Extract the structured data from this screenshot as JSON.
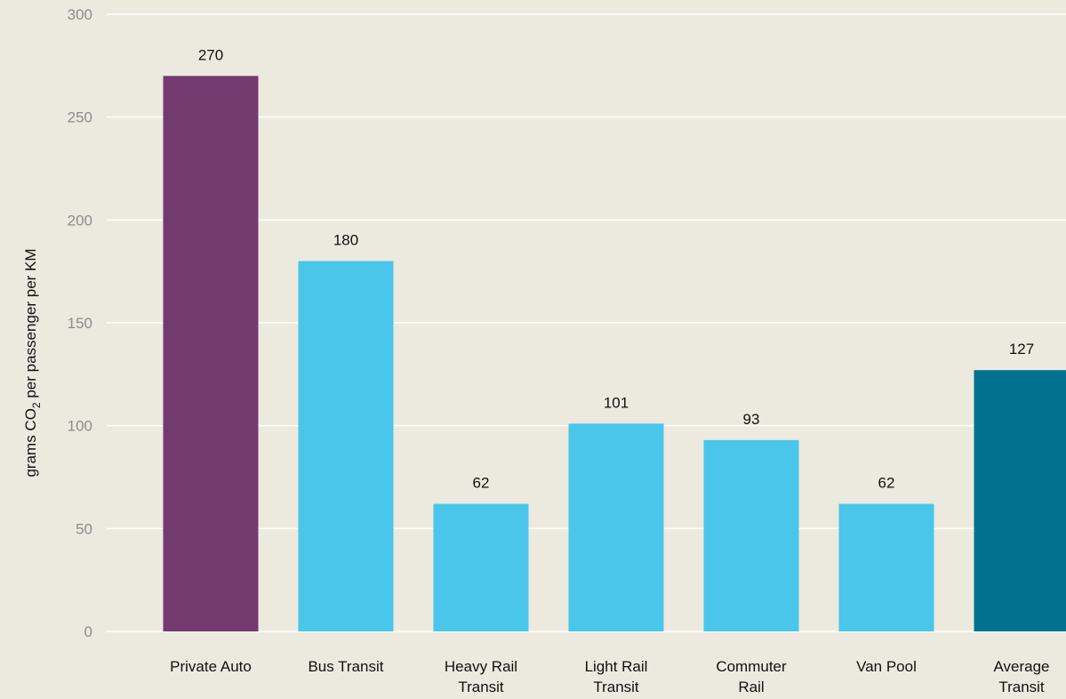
{
  "chart_data": {
    "type": "bar",
    "title": "",
    "xlabel": "",
    "ylabel": {
      "prefix": "grams CO",
      "subscript": "2",
      "suffix": " per passenger per KM"
    },
    "ylim": [
      0,
      300
    ],
    "yticks": [
      0,
      50,
      100,
      150,
      200,
      250,
      300
    ],
    "grid": true,
    "categories": [
      [
        "Private Auto"
      ],
      [
        "Bus Transit"
      ],
      [
        "Heavy Rail",
        "Transit"
      ],
      [
        "Light Rail",
        "Transit"
      ],
      [
        "Commuter",
        "Rail"
      ],
      [
        "Van Pool"
      ],
      [
        "Average",
        "Transit"
      ]
    ],
    "values": [
      270,
      180,
      62,
      101,
      93,
      62,
      127
    ],
    "colors": [
      "#74396F",
      "#49C6E9",
      "#49C6E9",
      "#49C6E9",
      "#49C6E9",
      "#49C6E9",
      "#00728F"
    ],
    "data_labels": [
      "270",
      "180",
      "62",
      "101",
      "93",
      "62",
      "127"
    ]
  },
  "colors": {
    "background": "#ECE9DE",
    "grid": "#FFFFFF",
    "tick_text": "#8C8C8C",
    "label_text": "#111111"
  }
}
